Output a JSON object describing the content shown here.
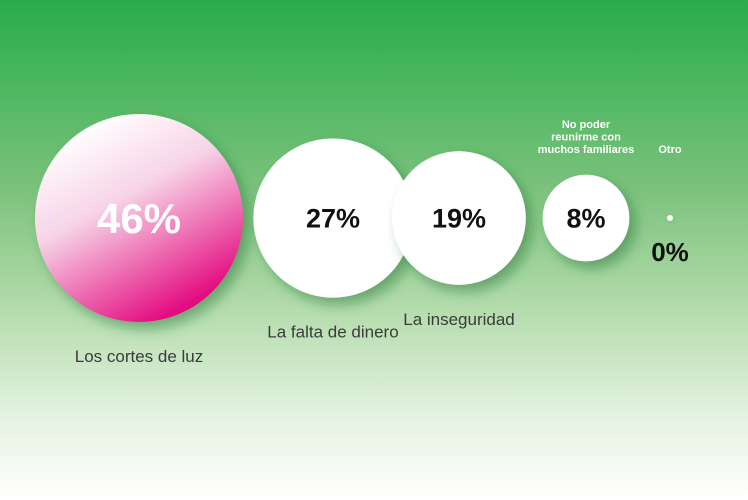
{
  "chart_data": {
    "type": "bubble",
    "categories": [
      "Los cortes de luz",
      "La falta de dinero",
      "La inseguridad",
      "No poder reunirme con muchos familiares",
      "Otro"
    ],
    "values": [
      46,
      27,
      19,
      8,
      0
    ],
    "value_labels": [
      "46%",
      "27%",
      "19%",
      "8%",
      "0%"
    ],
    "label_lines": [
      [
        "Los cortes de luz"
      ],
      [
        "La falta de dinero"
      ],
      [
        "La inseguridad"
      ],
      [
        "No poder",
        "reunirme con",
        "muchos familiares"
      ],
      [
        "Otro"
      ]
    ],
    "colors": {
      "highlight_start": "#ffffff",
      "highlight_end": "#e2007a",
      "bubble": "#ffffff",
      "value_text_dark": "#111111",
      "value_text_light": "#ffffff",
      "category_text": "#3b3b3b"
    }
  }
}
